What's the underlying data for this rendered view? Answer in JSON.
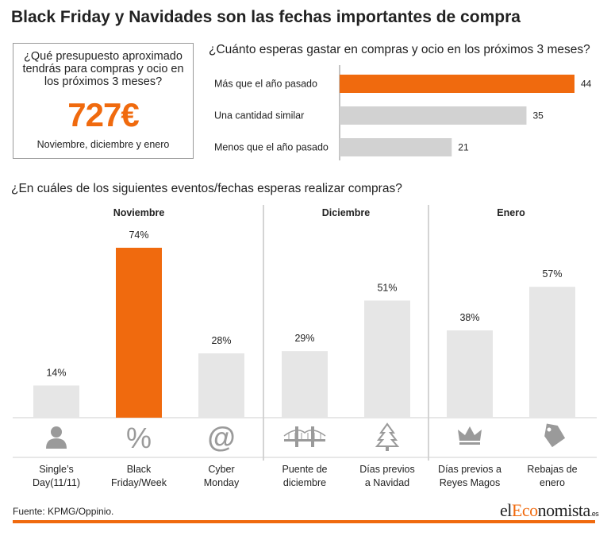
{
  "title": "Black Friday y Navidades son las fechas importantes de compra",
  "budget": {
    "question": "¿Qué presupuesto aproximado tendrás para compras y ocio en los próximos 3 meses?",
    "value": "727€",
    "note": "Noviembre, diciembre y enero"
  },
  "source": "Fuente: KPMG/Oppinio.",
  "logo": {
    "prefix": "el",
    "accent": "Eco",
    "suffix": "nomista",
    "tld": ".es"
  },
  "colors": {
    "accent": "#f06a0e",
    "bar": "#d2d2d2",
    "bar_light": "#e6e6e6"
  },
  "chart_data": [
    {
      "type": "bar",
      "orientation": "horizontal",
      "title": "¿Cuánto esperas gastar en compras y ocio en los próximos 3 meses?",
      "categories": [
        "Más que el año pasado",
        "Una cantidad similar",
        "Menos que el año pasado"
      ],
      "values": [
        44,
        35,
        21
      ],
      "highlight": [
        true,
        false,
        false
      ],
      "xlim": [
        0,
        44
      ]
    },
    {
      "type": "bar",
      "title": "¿En cuáles de los siguientes eventos/fechas esperas realizar compras?",
      "groups": [
        {
          "label": "Noviembre",
          "items": [
            0,
            1,
            2
          ]
        },
        {
          "label": "Diciembre",
          "items": [
            3,
            4
          ]
        },
        {
          "label": "Enero",
          "items": [
            5,
            6
          ]
        }
      ],
      "categories": [
        [
          "Single’s",
          "Day(11/11)"
        ],
        [
          "Black",
          "Friday/Week"
        ],
        [
          "Cyber",
          "Monday"
        ],
        [
          "Puente de",
          "diciembre"
        ],
        [
          "Días previos",
          "a Navidad"
        ],
        [
          "Días previos a",
          "Reyes Magos"
        ],
        [
          "Rebajas de",
          "enero"
        ]
      ],
      "values": [
        14,
        74,
        28,
        29,
        51,
        38,
        57
      ],
      "value_labels": [
        "14%",
        "74%",
        "28%",
        "29%",
        "51%",
        "38%",
        "57%"
      ],
      "highlight": [
        false,
        true,
        false,
        false,
        false,
        false,
        false
      ],
      "icons": [
        "person-icon",
        "percent-icon",
        "at-sign-icon",
        "bridge-icon",
        "christmas-tree-icon",
        "crown-icon",
        "price-tag-icon"
      ],
      "ylim": [
        0,
        74
      ]
    }
  ]
}
